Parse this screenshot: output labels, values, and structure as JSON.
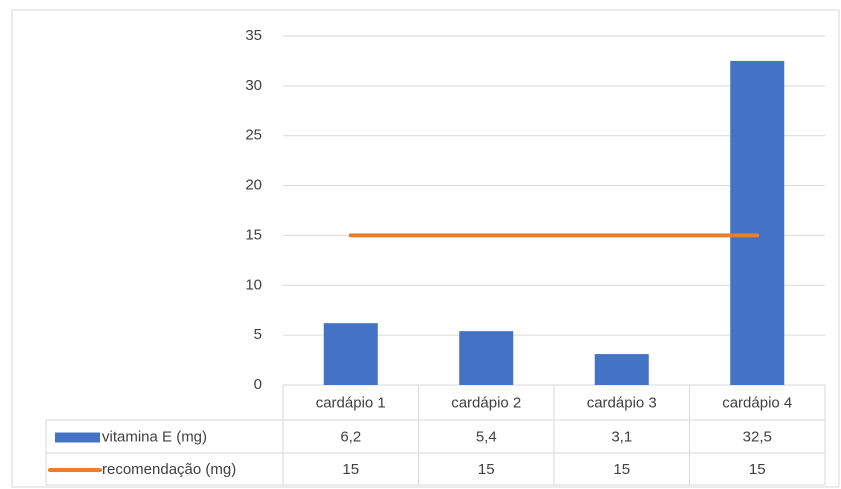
{
  "chart_data": {
    "type": "bar",
    "categories": [
      "cardápio 1",
      "cardápio 2",
      "cardápio 3",
      "cardápio 4"
    ],
    "series": [
      {
        "name": "vitamina E (mg)",
        "color": "#4472c4",
        "values": [
          6.2,
          5.4,
          3.1,
          32.5
        ],
        "value_labels": [
          "6,2",
          "5,4",
          "3,1",
          "32,5"
        ]
      },
      {
        "name": "recomendação (mg)",
        "color": "#ed7d31",
        "type": "line",
        "values": [
          15,
          15,
          15,
          15
        ]
      }
    ],
    "ylim": [
      0,
      35
    ],
    "yticks": [
      0,
      5,
      10,
      15,
      20,
      25,
      30,
      35
    ],
    "grid": true,
    "data_table": true
  }
}
